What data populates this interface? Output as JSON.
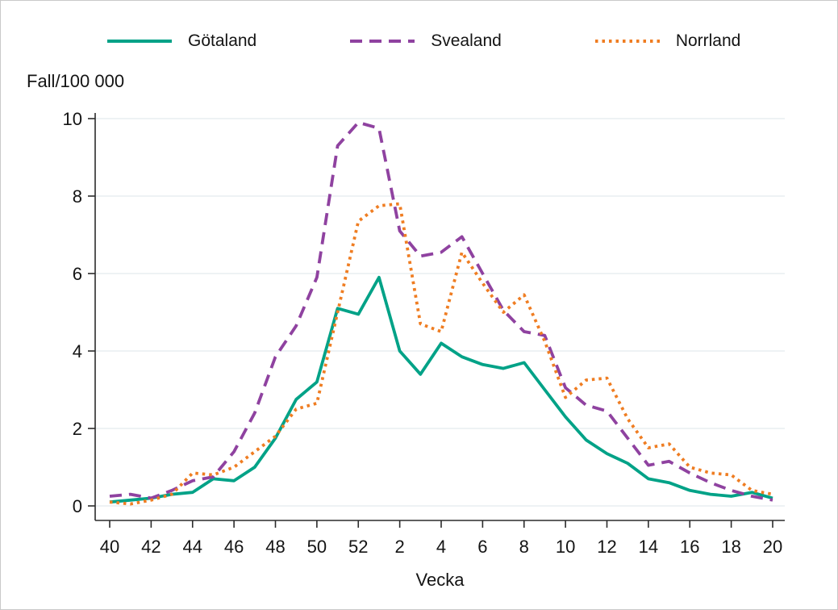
{
  "window": {
    "background": "#ffffff",
    "frame_border_color": "#c9c9c9"
  },
  "legend": {
    "items": [
      {
        "label": "Götaland",
        "color": "#00a287",
        "style": "solid"
      },
      {
        "label": "Svealand",
        "color": "#8f42a0",
        "style": "dashed"
      },
      {
        "label": "Norrland",
        "color": "#ef7d22",
        "style": "dotted"
      }
    ]
  },
  "chart_data": {
    "type": "line",
    "title": "",
    "ylabel": "Fall/100 000",
    "xlabel": "Vecka",
    "ylim": [
      0,
      10
    ],
    "y_ticks": [
      0,
      2,
      4,
      6,
      8,
      10
    ],
    "x_tick_labels": [
      "40",
      "42",
      "44",
      "46",
      "48",
      "50",
      "52",
      "2",
      "4",
      "6",
      "8",
      "10",
      "12",
      "14",
      "16",
      "18",
      "20"
    ],
    "x_tick_every": 2,
    "grid": "horizontal",
    "gridline_color": "#e8eef1",
    "axis_color": "#2b2b2b",
    "legend_position": "top",
    "categories": [
      "40",
      "41",
      "42",
      "43",
      "44",
      "45",
      "46",
      "47",
      "48",
      "49",
      "50",
      "51",
      "52",
      "1",
      "2",
      "3",
      "4",
      "5",
      "6",
      "7",
      "8",
      "9",
      "10",
      "11",
      "12",
      "13",
      "14",
      "15",
      "16",
      "17",
      "18",
      "19",
      "20"
    ],
    "series": [
      {
        "name": "Götaland",
        "color": "#00a287",
        "dash": "solid",
        "values": [
          0.1,
          0.15,
          0.2,
          0.3,
          0.35,
          0.7,
          0.65,
          1.0,
          1.75,
          2.75,
          3.2,
          5.1,
          4.95,
          5.9,
          4.0,
          3.4,
          4.2,
          3.85,
          3.65,
          3.55,
          3.7,
          3.0,
          2.3,
          1.7,
          1.35,
          1.1,
          0.7,
          0.6,
          0.4,
          0.3,
          0.25,
          0.35,
          0.2
        ]
      },
      {
        "name": "Svealand",
        "color": "#8f42a0",
        "dash": "dashed",
        "values": [
          0.25,
          0.3,
          0.2,
          0.4,
          0.65,
          0.75,
          1.4,
          2.4,
          3.85,
          4.65,
          5.9,
          9.3,
          9.9,
          9.75,
          7.1,
          6.45,
          6.55,
          6.95,
          6.0,
          5.05,
          4.5,
          4.4,
          3.05,
          2.6,
          2.45,
          1.75,
          1.05,
          1.15,
          0.85,
          0.6,
          0.4,
          0.25,
          0.15
        ]
      },
      {
        "name": "Norrland",
        "color": "#ef7d22",
        "dash": "dotted",
        "values": [
          0.1,
          0.05,
          0.15,
          0.3,
          0.85,
          0.8,
          1.0,
          1.4,
          1.8,
          2.5,
          2.65,
          5.0,
          7.35,
          7.75,
          7.8,
          4.7,
          4.5,
          6.55,
          5.75,
          5.0,
          5.45,
          4.25,
          2.8,
          3.25,
          3.3,
          2.25,
          1.5,
          1.6,
          1.0,
          0.85,
          0.8,
          0.4,
          0.3
        ]
      }
    ]
  }
}
